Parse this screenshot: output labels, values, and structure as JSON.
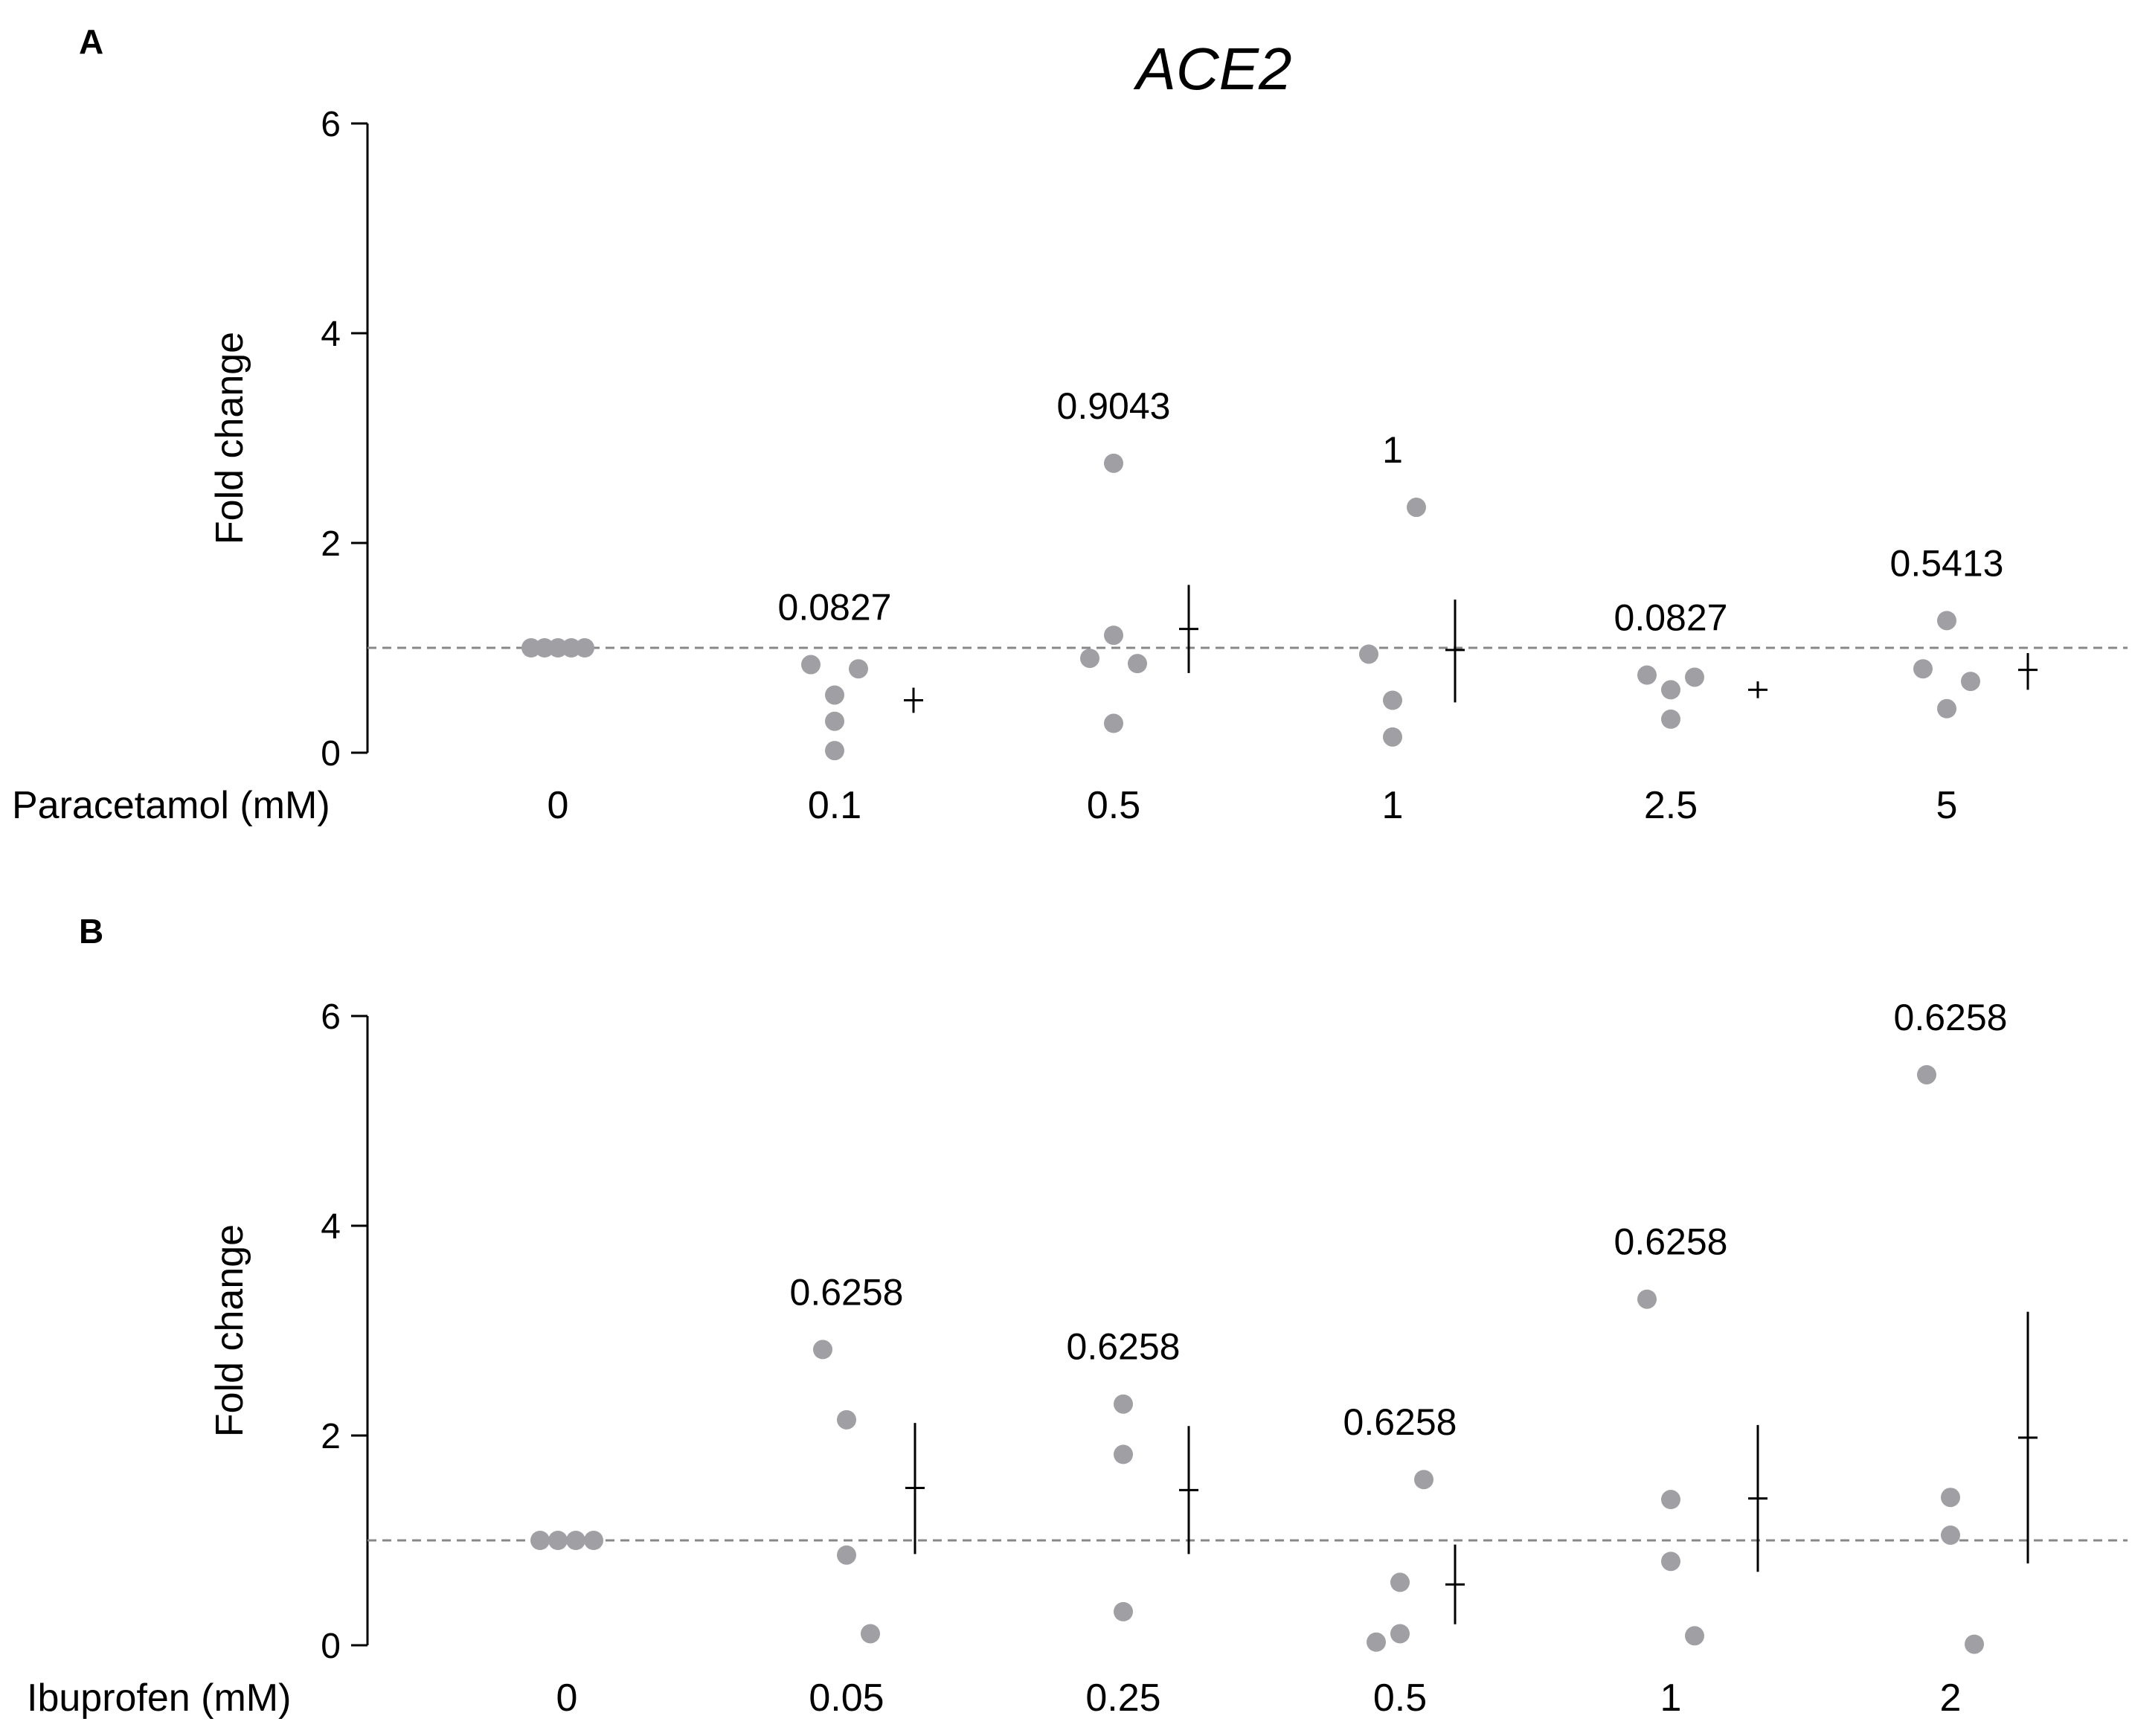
{
  "figure_title": "ACE2",
  "chart_data": [
    {
      "panel": "A",
      "type": "scatter",
      "ylabel": "Fold change",
      "xlabel": "Paracetamol (mM)",
      "ylim": [
        0,
        6
      ],
      "yticks": [
        0,
        2,
        4,
        6
      ],
      "reference_line": 1,
      "categories": [
        "0",
        "0.1",
        "0.5",
        "1",
        "2.5",
        "5"
      ],
      "groups": [
        {
          "values": [
            1,
            1,
            1,
            1,
            1
          ],
          "p_value": "",
          "mean": null,
          "err_low": null,
          "err_high": null
        },
        {
          "values": [
            0.84,
            0.55,
            0.3,
            0.02,
            0.8
          ],
          "p_value": "0.0827",
          "mean": 0.5,
          "err_low": 0.38,
          "err_high": 0.62
        },
        {
          "values": [
            0.9,
            1.12,
            0.28,
            2.76,
            0.85
          ],
          "p_value": "0.9043",
          "mean": 1.18,
          "err_low": 0.76,
          "err_high": 1.6
        },
        {
          "values": [
            0.94,
            0.5,
            0.15,
            2.34
          ],
          "p_value": "1",
          "mean": 0.98,
          "err_low": 0.48,
          "err_high": 1.46
        },
        {
          "values": [
            0.74,
            0.6,
            0.32,
            0.72
          ],
          "p_value": "0.0827",
          "mean": 0.6,
          "err_low": 0.52,
          "err_high": 0.68
        },
        {
          "values": [
            0.8,
            1.26,
            0.42,
            0.68
          ],
          "p_value": "0.5413",
          "mean": 0.79,
          "err_low": 0.6,
          "err_high": 0.95
        }
      ]
    },
    {
      "panel": "B",
      "type": "scatter",
      "ylabel": "Fold change",
      "xlabel": "Ibuprofen (mM)",
      "ylim": [
        0,
        6
      ],
      "yticks": [
        0,
        2,
        4,
        6
      ],
      "reference_line": 1,
      "categories": [
        "0",
        "0.05",
        "0.25",
        "0.5",
        "1",
        "2"
      ],
      "groups": [
        {
          "values": [
            1,
            1,
            1,
            1
          ],
          "p_value": "",
          "mean": null,
          "err_low": null,
          "err_high": null
        },
        {
          "values": [
            2.82,
            2.15,
            0.86,
            0.11
          ],
          "p_value": "0.6258",
          "mean": 1.5,
          "err_low": 0.87,
          "err_high": 2.12
        },
        {
          "values": [
            2.3,
            1.82,
            0.32
          ],
          "p_value": "0.6258",
          "mean": 1.48,
          "err_low": 0.87,
          "err_high": 2.09
        },
        {
          "values": [
            0.03,
            0.6,
            0.11,
            1.58
          ],
          "p_value": "0.6258",
          "mean": 0.58,
          "err_low": 0.2,
          "err_high": 0.96
        },
        {
          "values": [
            3.3,
            1.39,
            0.8,
            0.09
          ],
          "p_value": "0.6258",
          "mean": 1.4,
          "err_low": 0.7,
          "err_high": 2.1
        },
        {
          "values": [
            5.44,
            1.41,
            1.05,
            0.01
          ],
          "p_value": "0.6258",
          "mean": 1.98,
          "err_low": 0.78,
          "err_high": 3.18
        }
      ]
    }
  ],
  "colors": {
    "points": "#a0a0a4",
    "reference": "#888888",
    "axis": "#000000"
  }
}
